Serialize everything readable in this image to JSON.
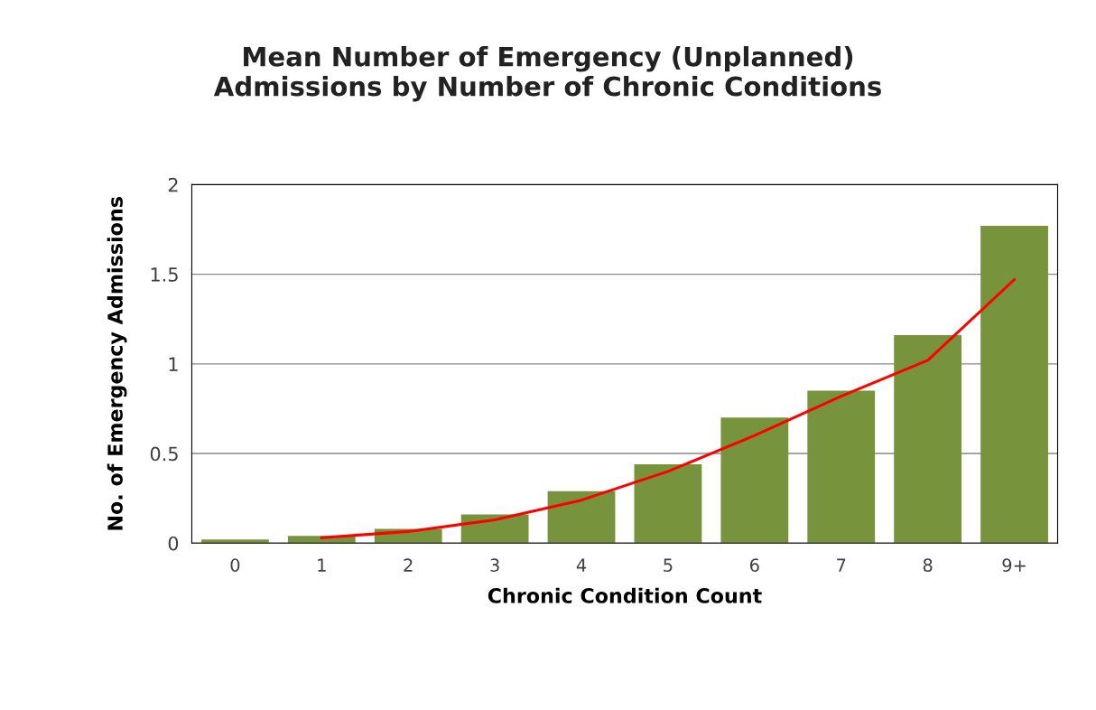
{
  "chart_data": {
    "type": "bar",
    "title": "Mean Number of Emergency (Unplanned)\nAdmissions by Number of Chronic Conditions",
    "xlabel": "Chronic Condition Count",
    "ylabel": "No. of Emergency Admissions",
    "categories": [
      "0",
      "1",
      "2",
      "3",
      "4",
      "5",
      "6",
      "7",
      "8",
      "9+"
    ],
    "series": [
      {
        "color": "#77933c",
        "values": [
          0.02,
          0.04,
          0.08,
          0.16,
          0.29,
          0.44,
          0.7,
          0.85,
          1.16,
          1.77
        ]
      },
      {
        "type": "line",
        "color": "#ff0000",
        "values": [
          null,
          0.03,
          0.065,
          0.13,
          0.24,
          0.4,
          0.6,
          0.82,
          1.02,
          1.47
        ]
      }
    ],
    "ylim": [
      0,
      2
    ],
    "yticks": [
      0,
      0.5,
      1,
      1.5,
      2
    ],
    "grid": "y"
  }
}
